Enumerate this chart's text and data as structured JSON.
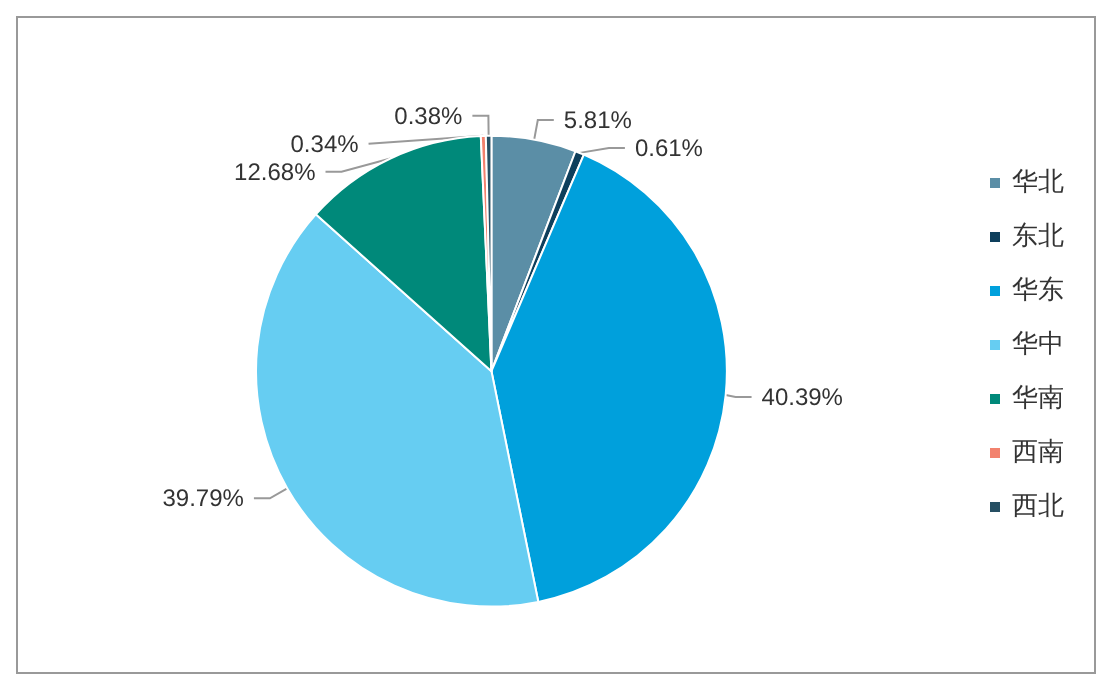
{
  "chart_data": {
    "type": "pie",
    "categories": [
      "华北",
      "东北",
      "华东",
      "华中",
      "华南",
      "西南",
      "西北"
    ],
    "values": [
      5.81,
      0.61,
      40.39,
      39.79,
      12.68,
      0.34,
      0.38
    ],
    "value_labels": [
      "5.81%",
      "0.61%",
      "40.39%",
      "39.79%",
      "12.68%",
      "0.34%",
      "0.38%"
    ],
    "colors": [
      "#5b8ea6",
      "#0e3f5c",
      "#00a0dc",
      "#66cdf2",
      "#00897a",
      "#f2826e",
      "#264f63"
    ],
    "legend": "right"
  }
}
